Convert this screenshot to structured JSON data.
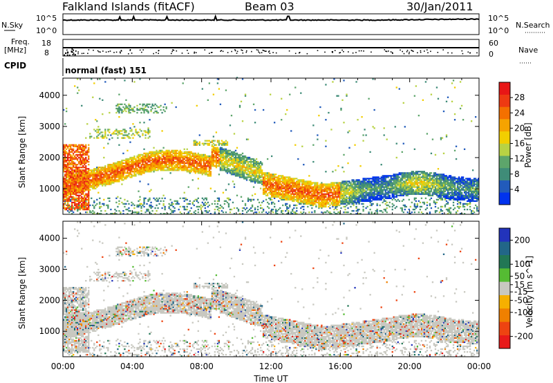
{
  "header": {
    "station": "Falkland Islands (fitACF)",
    "beam": "Beam 03",
    "date": "30/Jan/2011"
  },
  "nsky_panel": {
    "left_label": "N.Sky",
    "right_label": "N.Search",
    "left_ticks": [
      "10^5",
      "10^0"
    ],
    "right_ticks": [
      "10^5",
      "10^0"
    ]
  },
  "freq_panel": {
    "left_label_1": "Freq.",
    "left_label_2": "[MHz]",
    "right_label": "Nave",
    "left_ticks": [
      "18",
      "8"
    ],
    "right_ticks": [
      "60",
      "0"
    ]
  },
  "cpid_panel": {
    "label": "CPID",
    "value": "normal (fast) 151"
  },
  "chart_data": [
    {
      "type": "heatmap",
      "quantity": "Power",
      "ylabel": "Slant Range [km]",
      "xlabel": "",
      "y_ticks": [
        "4000",
        "3000",
        "2000",
        "1000"
      ],
      "ylim": [
        180,
        4550
      ],
      "xlim": [
        0,
        24
      ],
      "colorbar_label": "Power [dB]",
      "colorbar_ticks": [
        "28",
        "24",
        "20",
        "16",
        "12",
        "8",
        "4"
      ],
      "colorbar_range": [
        0,
        32
      ],
      "colors": [
        "#0033ee",
        "#225bbb",
        "#3f8c78",
        "#5da56b",
        "#b8d244",
        "#f2ce00",
        "#f6a300",
        "#f47000",
        "#ee3a12",
        "#e81616"
      ]
    },
    {
      "type": "heatmap",
      "quantity": "Velocity",
      "ylabel": "Slant Range [km]",
      "xlabel": "Time UT",
      "y_ticks": [
        "4000",
        "3000",
        "2000",
        "1000"
      ],
      "x_ticks": [
        "00:00",
        "04:00",
        "08:00",
        "12:00",
        "16:00",
        "20:00",
        "00:00"
      ],
      "ylim": [
        180,
        4550
      ],
      "xlim": [
        0,
        24
      ],
      "colorbar_label": "Velocity [m s^-1]",
      "colorbar_ticks": [
        "200",
        "100",
        "50",
        "15",
        "-15",
        "-50",
        "-100",
        "-200"
      ],
      "colorbar_range": [
        -250,
        250
      ],
      "colors": [
        "#2233bb",
        "#226688",
        "#227755",
        "#55bb33",
        "#c8c8c0",
        "#f6b000",
        "#f08000",
        "#ee4411",
        "#e81a1a"
      ]
    }
  ]
}
